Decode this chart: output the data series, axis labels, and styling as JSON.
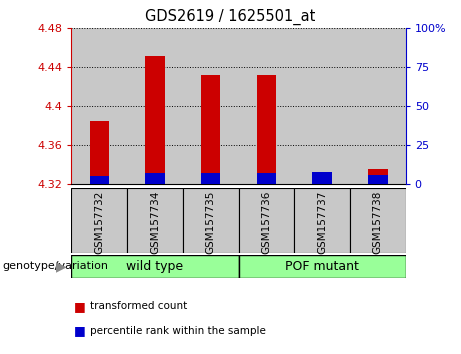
{
  "title": "GDS2619 / 1625501_at",
  "samples": [
    "GSM157732",
    "GSM157734",
    "GSM157735",
    "GSM157736",
    "GSM157737",
    "GSM157738"
  ],
  "red_values": [
    4.385,
    4.452,
    4.432,
    4.432,
    4.317,
    4.335
  ],
  "blue_values_pct": [
    5,
    7,
    7,
    7,
    8,
    6
  ],
  "ylim_left": [
    4.32,
    4.48
  ],
  "ylim_right": [
    0,
    100
  ],
  "yticks_left": [
    4.32,
    4.36,
    4.4,
    4.44,
    4.48
  ],
  "yticks_right": [
    0,
    25,
    50,
    75,
    100
  ],
  "base_value": 4.32,
  "bar_width": 0.35,
  "red_color": "#cc0000",
  "blue_color": "#0000cc",
  "plot_bg_color": "#ffffff",
  "col_bg_color": "#c8c8c8",
  "group_color": "#99ff99",
  "left_tick_color": "#cc0000",
  "right_tick_color": "#0000cc",
  "groups": [
    {
      "label": "wild type",
      "start": 0,
      "end": 3
    },
    {
      "label": "POF mutant",
      "start": 3,
      "end": 6
    }
  ],
  "genotype_label": "genotype/variation",
  "legend_items": [
    {
      "label": "transformed count",
      "color": "#cc0000"
    },
    {
      "label": "percentile rank within the sample",
      "color": "#0000cc"
    }
  ],
  "figsize": [
    4.61,
    3.54
  ],
  "dpi": 100
}
